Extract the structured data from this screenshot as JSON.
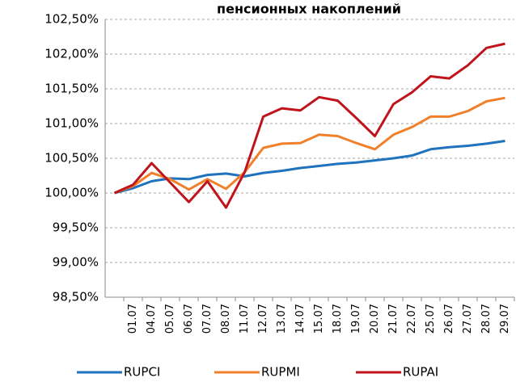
{
  "chart_data": {
    "type": "line",
    "title": "пенсионных накоплений",
    "categories": [
      null,
      "01.07",
      "04.07",
      "05.07",
      "06.07",
      "07.07",
      "08.07",
      "11.07",
      "12.07",
      "13.07",
      "14.07",
      "15.07",
      "18.07",
      "19.07",
      "20.07",
      "21.07",
      "22.07",
      "25.07",
      "26.07",
      "27.07",
      "28.07",
      "29.07"
    ],
    "series": [
      {
        "name": "RUPCI",
        "color": "#1f72be",
        "values": [
          100.0,
          100.07,
          100.17,
          100.21,
          100.2,
          100.26,
          100.28,
          100.24,
          100.29,
          100.32,
          100.36,
          100.39,
          100.42,
          100.44,
          100.47,
          100.5,
          100.54,
          100.63,
          100.66,
          100.68,
          100.71,
          100.75
        ]
      },
      {
        "name": "RUPMI",
        "color": "#f0802a",
        "values": [
          100.0,
          100.1,
          100.29,
          100.2,
          100.05,
          100.2,
          100.06,
          100.3,
          100.65,
          100.71,
          100.72,
          100.84,
          100.82,
          100.72,
          100.63,
          100.84,
          100.95,
          101.1,
          101.1,
          101.18,
          101.32,
          101.37
        ]
      },
      {
        "name": "RUPAI",
        "color": "#c0141c",
        "values": [
          100.0,
          100.12,
          100.43,
          100.15,
          99.87,
          100.17,
          99.79,
          100.3,
          101.1,
          101.22,
          101.19,
          101.38,
          101.33,
          101.08,
          100.82,
          101.28,
          101.45,
          101.68,
          101.65,
          101.84,
          102.09,
          102.15
        ]
      }
    ],
    "ylim": [
      98.5,
      102.5
    ],
    "yticks": [
      {
        "value": 98.5,
        "label": "98,50%"
      },
      {
        "value": 99,
        "label": "99,00%"
      },
      {
        "value": 99.5,
        "label": "99,50%"
      },
      {
        "value": 100,
        "label": "100,00%"
      },
      {
        "value": 100.5,
        "label": "100,50%"
      },
      {
        "value": 101,
        "label": "101,00%"
      },
      {
        "value": 101.5,
        "label": "101,50%"
      },
      {
        "value": 102,
        "label": "102,00%"
      },
      {
        "value": 102.5,
        "label": "102,50%"
      }
    ],
    "grid": true,
    "legend": "bottom"
  }
}
